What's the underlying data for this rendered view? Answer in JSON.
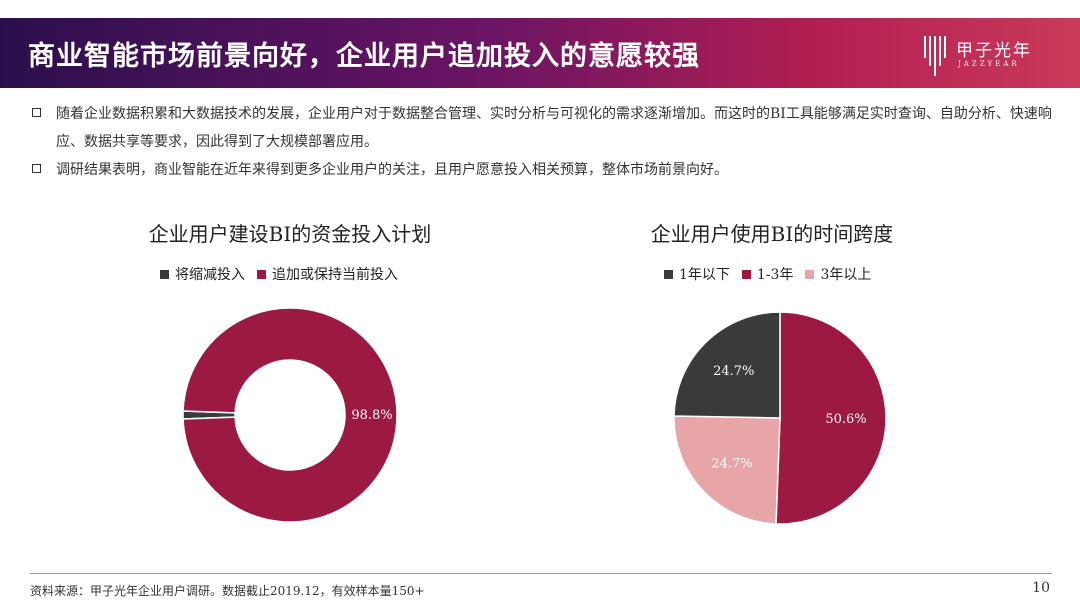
{
  "header": {
    "title": "商业智能市场前景向好，企业用户追加投入的意愿较强",
    "logo_cn": "甲子光年",
    "logo_en": "JAZZYEAR"
  },
  "bullets": [
    "随着企业数据积累和大数据技术的发展，企业用户对于数据整合管理、实时分析与可视化的需求逐渐增加。而这时的BI工具能够满足实时查询、自助分析、快速响应、数据共享等要求，因此得到了大规模部署应用。",
    "调研结果表明，商业智能在近年来得到更多企业用户的关注，且用户愿意投入相关预算，整体市场前景向好。"
  ],
  "chart_data": [
    {
      "type": "pie",
      "variant": "donut",
      "title": "企业用户建设BI的资金投入计划",
      "categories": [
        "将缩减投入",
        "追加或保持当前投入"
      ],
      "values": [
        1.2,
        98.8
      ],
      "data_labels": [
        "",
        "98.8%"
      ],
      "colors": [
        "#3a3a3c",
        "#9c1a41"
      ],
      "legend_position": "top"
    },
    {
      "type": "pie",
      "title": "企业用户使用BI的时间跨度",
      "categories": [
        "1年以下",
        "1-3年",
        "3年以上"
      ],
      "values": [
        24.7,
        50.6,
        24.7
      ],
      "data_labels": [
        "24.7%",
        "50.6%",
        "24.7%"
      ],
      "colors": [
        "#3a3a3c",
        "#9c1a41",
        "#e8a5a8"
      ],
      "legend_position": "top"
    }
  ],
  "footer": {
    "source": "资料来源：甲子光年企业用户调研。数据截止2019.12，有效样本量150+",
    "page": "10"
  }
}
